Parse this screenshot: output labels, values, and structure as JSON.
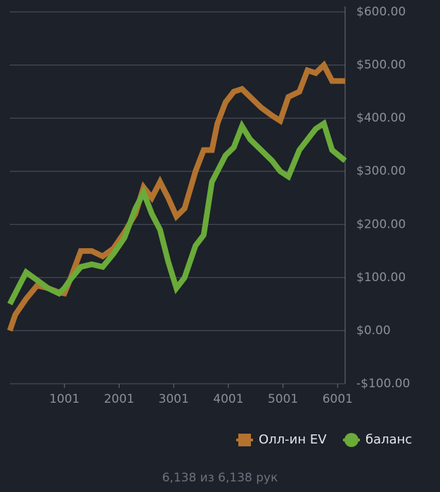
{
  "chart_data": {
    "type": "line",
    "x": [
      1,
      100,
      300,
      500,
      700,
      900,
      1000,
      1100,
      1300,
      1500,
      1700,
      1900,
      2100,
      2300,
      2450,
      2600,
      2750,
      2900,
      3050,
      3200,
      3400,
      3550,
      3700,
      3800,
      3950,
      4100,
      4250,
      4400,
      4600,
      4800,
      4950,
      5100,
      5300,
      5450,
      5600,
      5750,
      5900,
      6138
    ],
    "series": [
      {
        "name": "Олл-ин EV",
        "color": "#b3732f",
        "values": [
          0,
          30,
          60,
          85,
          80,
          72,
          70,
          95,
          150,
          150,
          140,
          155,
          185,
          220,
          270,
          250,
          280,
          250,
          215,
          230,
          300,
          340,
          340,
          390,
          430,
          450,
          455,
          440,
          420,
          405,
          395,
          440,
          450,
          490,
          485,
          500,
          470,
          470
        ]
      },
      {
        "name": "баланс",
        "color": "#6aab3a",
        "values": [
          50,
          70,
          110,
          95,
          80,
          70,
          80,
          95,
          120,
          125,
          120,
          145,
          175,
          230,
          260,
          220,
          190,
          130,
          80,
          100,
          160,
          180,
          280,
          300,
          330,
          345,
          385,
          360,
          340,
          320,
          300,
          290,
          340,
          360,
          380,
          390,
          340,
          320
        ]
      }
    ],
    "xlim": [
      1,
      6138
    ],
    "xticks": [
      1001,
      2001,
      3001,
      4001,
      5001,
      6001
    ],
    "ylim": [
      -100,
      600
    ],
    "yticks": [
      {
        "value": -100,
        "label": "-$100.00"
      },
      {
        "value": 0,
        "label": "$0.00"
      },
      {
        "value": 100,
        "label": "$100.00"
      },
      {
        "value": 200,
        "label": "$200.00"
      },
      {
        "value": 300,
        "label": "$300.00"
      },
      {
        "value": 400,
        "label": "$400.00"
      },
      {
        "value": 500,
        "label": "$500.00"
      },
      {
        "value": 600,
        "label": "$600.00"
      }
    ],
    "grid": true,
    "footer": "6,138 из 6,138 рук"
  }
}
